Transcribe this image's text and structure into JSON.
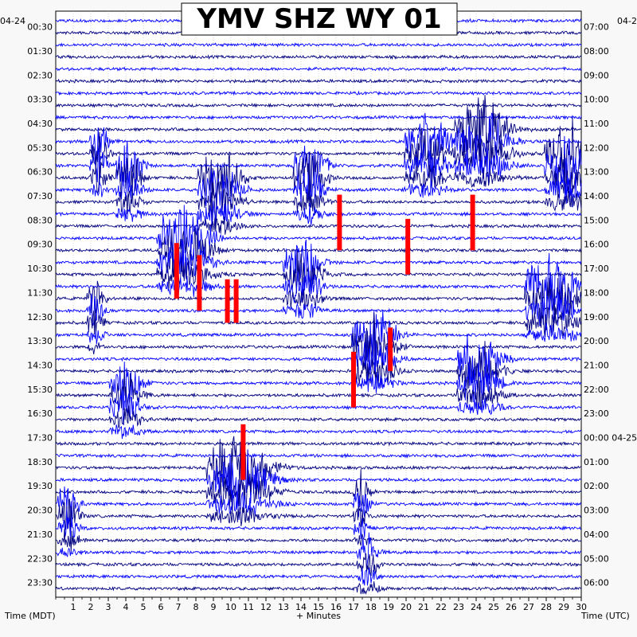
{
  "chart_data": {
    "type": "line",
    "title": "YMV SHZ WY 01",
    "xlabel": "+ Minutes",
    "left_axis_label": "Time (MDT)",
    "right_axis_label": "Time (UTC)",
    "xlim": [
      0,
      30
    ],
    "x_ticks": [
      "1",
      "2",
      "3",
      "4",
      "5",
      "6",
      "7",
      "8",
      "9",
      "10",
      "11",
      "12",
      "13",
      "14",
      "15",
      "16",
      "17",
      "18",
      "19",
      "20",
      "21",
      "22",
      "23",
      "24",
      "25",
      "26",
      "27",
      "28",
      "29",
      "30"
    ],
    "left_date": "04-24",
    "right_date_start": "04-2",
    "right_date_next": "04-25",
    "left_hour_labels": [
      "00:30",
      "01:30",
      "02:30",
      "03:30",
      "04:30",
      "05:30",
      "06:30",
      "07:30",
      "08:30",
      "09:30",
      "10:30",
      "11:30",
      "12:30",
      "13:30",
      "14:30",
      "15:30",
      "16:30",
      "17:30",
      "18:30",
      "19:30",
      "20:30",
      "21:30",
      "22:30",
      "23:30"
    ],
    "right_hour_labels": [
      "07:00",
      "08:00",
      "09:00",
      "10:00",
      "11:00",
      "12:00",
      "13:00",
      "14:00",
      "15:00",
      "16:00",
      "17:00",
      "18:00",
      "19:00",
      "20:00",
      "21:00",
      "22:00",
      "23:00",
      "00:00 04-25",
      "01:00",
      "02:00",
      "03:00",
      "04:00",
      "05:00",
      "06:00"
    ],
    "trace_count": 48,
    "trace_colors": [
      "#0000ff",
      "#000080"
    ],
    "clip_color": "#ff0000",
    "grid": true,
    "events": [
      {
        "t0": 10,
        "minute": 2.2,
        "dur": 0.9,
        "amp": 1.8
      },
      {
        "t0": 12,
        "minute": 3.8,
        "dur": 1.2,
        "amp": 2.0
      },
      {
        "t0": 13,
        "minute": 8.7,
        "dur": 2.0,
        "amp": 2.2
      },
      {
        "t0": 12,
        "minute": 14.0,
        "dur": 1.5,
        "amp": 2.2
      },
      {
        "t0": 10,
        "minute": 20.5,
        "dur": 2.0,
        "amp": 2.0
      },
      {
        "t0": 9,
        "minute": 23.5,
        "dur": 2.5,
        "amp": 2.6
      },
      {
        "t0": 11,
        "minute": 28.5,
        "dur": 2.0,
        "amp": 2.4
      },
      {
        "t0": 18,
        "minute": 6.5,
        "dur": 2.5,
        "amp": 2.4
      },
      {
        "t0": 20,
        "minute": 13.5,
        "dur": 1.8,
        "amp": 2.0
      },
      {
        "t0": 23,
        "minute": 2.0,
        "dur": 0.8,
        "amp": 1.5
      },
      {
        "t0": 22,
        "minute": 27.5,
        "dur": 2.5,
        "amp": 2.4
      },
      {
        "t0": 26,
        "minute": 17.5,
        "dur": 2.0,
        "amp": 2.5
      },
      {
        "t0": 28,
        "minute": 23.5,
        "dur": 2.0,
        "amp": 2.3
      },
      {
        "t0": 30,
        "minute": 3.5,
        "dur": 1.5,
        "amp": 1.8
      },
      {
        "t0": 37,
        "minute": 9.5,
        "dur": 3.0,
        "amp": 2.2
      },
      {
        "t0": 39,
        "minute": 17.2,
        "dur": 0.8,
        "amp": 1.5
      },
      {
        "t0": 40,
        "minute": 0.4,
        "dur": 1.0,
        "amp": 1.6
      },
      {
        "t0": 44,
        "minute": 17.5,
        "dur": 1.0,
        "amp": 1.2
      }
    ],
    "clipped": [
      {
        "t0": 15,
        "minute": 16.2,
        "n": 4
      },
      {
        "t0": 15,
        "minute": 23.8,
        "n": 4
      },
      {
        "t0": 17,
        "minute": 20.1,
        "n": 4
      },
      {
        "t0": 19,
        "minute": 6.9,
        "n": 4
      },
      {
        "t0": 20,
        "minute": 8.2,
        "n": 4
      },
      {
        "t0": 22,
        "minute": 9.8,
        "n": 3
      },
      {
        "t0": 22,
        "minute": 10.3,
        "n": 3
      },
      {
        "t0": 28,
        "minute": 17.0,
        "n": 4
      },
      {
        "t0": 26,
        "minute": 19.1,
        "n": 3
      },
      {
        "t0": 34,
        "minute": 10.7,
        "n": 4
      }
    ]
  }
}
